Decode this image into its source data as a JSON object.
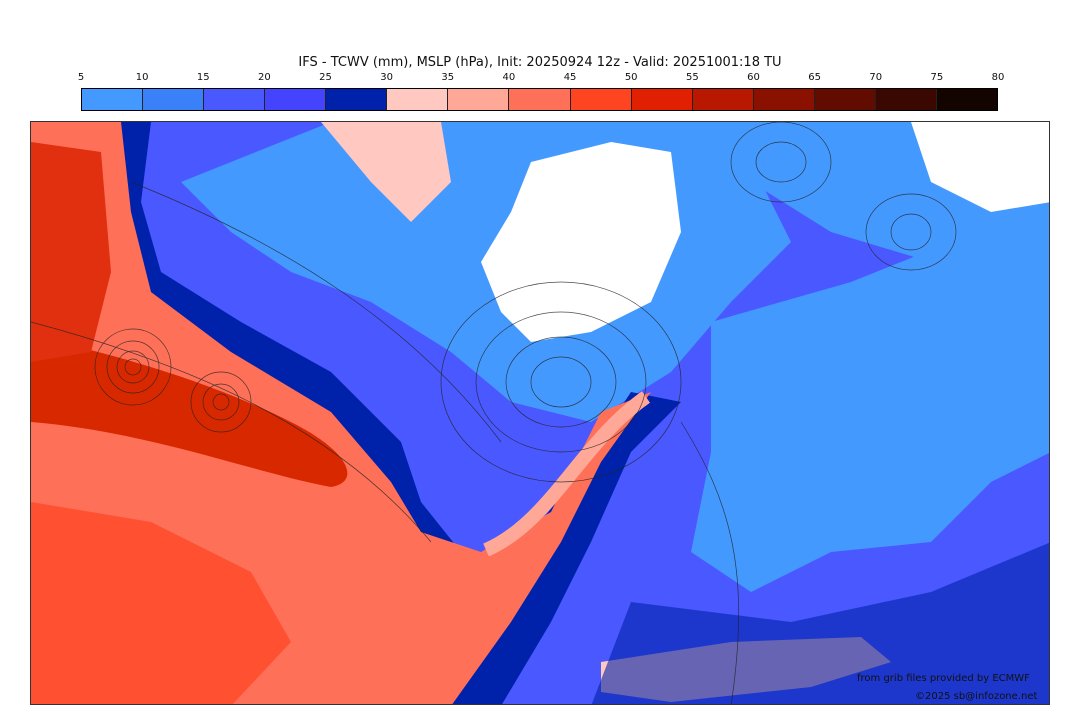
{
  "title": "IFS - TCWV (mm), MSLP (hPa), Init: 20250924 12z - Valid: 20251001:18 TU",
  "colorbar": {
    "ticks": [
      "5",
      "10",
      "15",
      "20",
      "25",
      "30",
      "35",
      "40",
      "45",
      "50",
      "55",
      "60",
      "65",
      "70",
      "75",
      "80"
    ],
    "colors": [
      "#4499ff",
      "#3a80f8",
      "#4a58ff",
      "#4444ff",
      "#0022aa",
      "#ffc8c0",
      "#ffa898",
      "#ff7058",
      "#ff4422",
      "#e02000",
      "#b81800",
      "#8a1000",
      "#620c00",
      "#3a0800",
      "#140400"
    ]
  },
  "credits": {
    "source": "from grib files provided by ECMWF",
    "copyright": "©2025 sb@infozone.net"
  }
}
